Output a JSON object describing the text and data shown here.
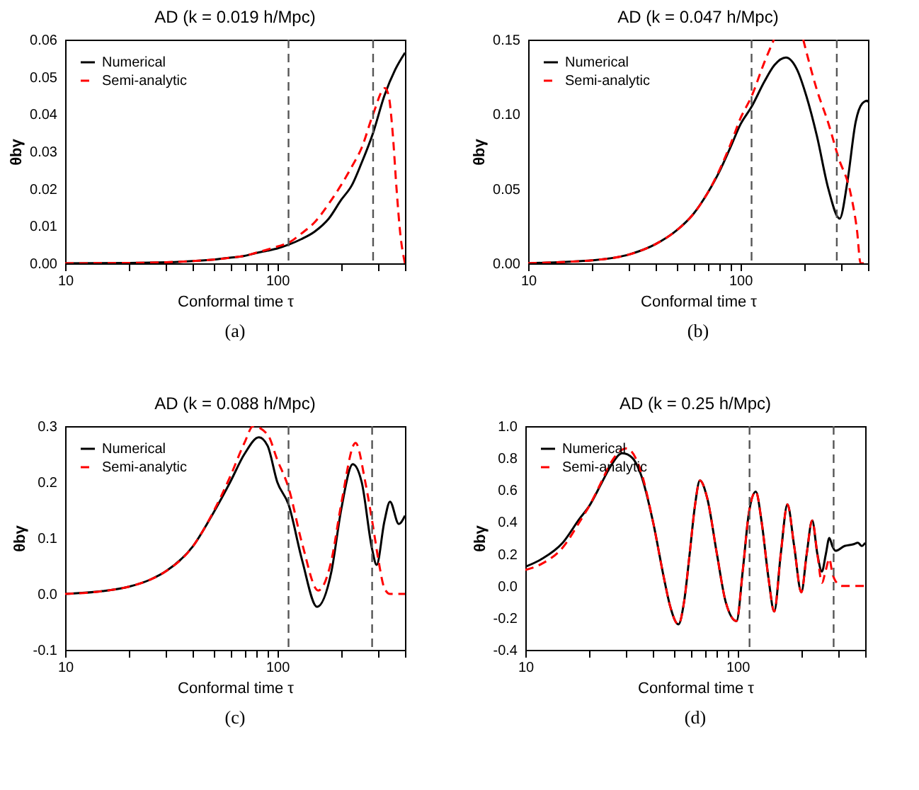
{
  "chart_data": [
    {
      "type": "line",
      "title": "AD (k = 0.019 h/Mpc)",
      "xlabel": "Conformal time τ",
      "ylabel": "θbγ",
      "log": "x",
      "grid": false,
      "legend": "top left",
      "annotations": [
        "(a)"
      ],
      "xlim": [
        10,
        400
      ],
      "xticks": [
        10,
        {
          "value": 20,
          "label": null
        },
        {
          "value": 30,
          "label": null
        },
        {
          "value": 40,
          "label": null
        },
        {
          "value": 50,
          "label": null
        },
        {
          "value": 60,
          "label": null
        },
        {
          "value": 70,
          "label": null
        },
        {
          "value": 80,
          "label": null
        },
        {
          "value": 90,
          "label": null
        },
        100,
        {
          "value": 200,
          "label": null
        },
        {
          "value": 300,
          "label": null
        },
        {
          "value": 400,
          "label": null
        }
      ],
      "ylim": [
        0,
        0.06
      ],
      "yticks": [
        {
          "value": 0,
          "label": "0.00"
        },
        0.01,
        0.02,
        0.03,
        0.04,
        0.05,
        0.06
      ],
      "ref_lines": [
        {
          "axis": "x",
          "value": 113,
          "color": "#555555",
          "line_style": "dashed"
        },
        {
          "axis": "x",
          "value": 283,
          "color": "#555555",
          "line_style": "dashed"
        }
      ],
      "series": [
        {
          "name": "Numerical",
          "color": "#000000",
          "line_style": "solid",
          "x": [
            10,
            20,
            30,
            40,
            50,
            60,
            70,
            80,
            90,
            100,
            113,
            130,
            150,
            175,
            200,
            225,
            250,
            283,
            320,
            360,
            400
          ],
          "values": [
            0,
            0.0001,
            0.0003,
            0.0006,
            0.001,
            0.0015,
            0.002,
            0.0028,
            0.0034,
            0.004,
            0.005,
            0.0065,
            0.0085,
            0.012,
            0.017,
            0.021,
            0.027,
            0.035,
            0.045,
            0.052,
            0.0565
          ]
        },
        {
          "name": "Semi-analytic",
          "color": "#ff0000",
          "line_style": "dashed",
          "x": [
            10,
            20,
            30,
            40,
            50,
            60,
            70,
            80,
            90,
            100,
            113,
            130,
            150,
            175,
            200,
            225,
            250,
            283,
            322,
            335,
            350,
            365,
            380,
            400
          ],
          "values": [
            0,
            0.0001,
            0.0003,
            0.0006,
            0.001,
            0.0015,
            0.002,
            0.0029,
            0.0037,
            0.0045,
            0.0055,
            0.008,
            0.011,
            0.016,
            0.021,
            0.026,
            0.031,
            0.04,
            0.047,
            0.045,
            0.035,
            0.02,
            0.008,
            0
          ]
        }
      ]
    },
    {
      "type": "line",
      "title": "AD (k = 0.047 h/Mpc)",
      "xlabel": "Conformal time τ",
      "ylabel": "θbγ",
      "log": "x",
      "grid": false,
      "legend": "top left",
      "annotations": [
        "(b)"
      ],
      "xlim": [
        10,
        400
      ],
      "xticks": [
        10,
        {
          "value": 20,
          "label": null
        },
        {
          "value": 30,
          "label": null
        },
        {
          "value": 40,
          "label": null
        },
        {
          "value": 50,
          "label": null
        },
        {
          "value": 60,
          "label": null
        },
        {
          "value": 70,
          "label": null
        },
        {
          "value": 80,
          "label": null
        },
        {
          "value": 90,
          "label": null
        },
        100,
        {
          "value": 200,
          "label": null
        },
        {
          "value": 300,
          "label": null
        },
        {
          "value": 400,
          "label": null
        }
      ],
      "ylim": [
        0,
        0.15
      ],
      "yticks": [
        {
          "value": 0,
          "label": "0.00"
        },
        0.05,
        {
          "value": 0.1,
          "label": "0.10"
        },
        0.15
      ],
      "ref_lines": [
        {
          "axis": "x",
          "value": 113,
          "color": "#555555",
          "line_style": "dashed"
        },
        {
          "axis": "x",
          "value": 285,
          "color": "#555555",
          "line_style": "dashed"
        }
      ],
      "series": [
        {
          "name": "Numerical",
          "color": "#000000",
          "line_style": "solid",
          "x": [
            10,
            15,
            20,
            30,
            40,
            50,
            60,
            70,
            80,
            90,
            100,
            113,
            130,
            145,
            164,
            185,
            205,
            230,
            260,
            294,
            320,
            350,
            375,
            397,
            400
          ],
          "values": [
            0,
            0.001,
            0.002,
            0.006,
            0.013,
            0.022,
            0.033,
            0.047,
            0.062,
            0.078,
            0.093,
            0.105,
            0.122,
            0.133,
            0.138,
            0.13,
            0.112,
            0.085,
            0.05,
            0.03,
            0.055,
            0.095,
            0.107,
            0.109,
            0.108
          ]
        },
        {
          "name": "Semi-analytic",
          "color": "#ff0000",
          "line_style": "dashed",
          "x": [
            10,
            15,
            20,
            30,
            40,
            50,
            60,
            70,
            80,
            90,
            100,
            113,
            130,
            144,
            170,
            198,
            230,
            260,
            290,
            331,
            355,
            369,
            400
          ],
          "values": [
            0,
            0.001,
            0.002,
            0.006,
            0.013,
            0.022,
            0.033,
            0.047,
            0.063,
            0.08,
            0.097,
            0.112,
            0.135,
            0.15,
            null,
            0.15,
            0.116,
            0.094,
            0.071,
            0.047,
            0.022,
            0,
            0
          ]
        }
      ]
    },
    {
      "type": "line",
      "title": "AD (k = 0.088 h/Mpc)",
      "xlabel": "Conformal time τ",
      "ylabel": "θbγ",
      "log": "x",
      "grid": false,
      "legend": "top left",
      "annotations": [
        "(c)"
      ],
      "xlim": [
        10,
        400
      ],
      "xticks": [
        10,
        {
          "value": 20,
          "label": null
        },
        {
          "value": 30,
          "label": null
        },
        {
          "value": 40,
          "label": null
        },
        {
          "value": 50,
          "label": null
        },
        {
          "value": 60,
          "label": null
        },
        {
          "value": 70,
          "label": null
        },
        {
          "value": 80,
          "label": null
        },
        {
          "value": 90,
          "label": null
        },
        100,
        {
          "value": 200,
          "label": null
        },
        {
          "value": 300,
          "label": null
        },
        {
          "value": 400,
          "label": null
        }
      ],
      "ylim": [
        -0.1,
        0.3
      ],
      "yticks": [
        -0.1,
        {
          "value": 0,
          "label": "0.0"
        },
        0.1,
        0.2,
        0.3
      ],
      "ref_lines": [
        {
          "axis": "x",
          "value": 113,
          "color": "#555555",
          "line_style": "dashed"
        },
        {
          "axis": "x",
          "value": 280,
          "color": "#555555",
          "line_style": "dashed"
        }
      ],
      "series": [
        {
          "name": "Numerical",
          "color": "#000000",
          "line_style": "solid",
          "x": [
            10,
            15,
            20,
            25,
            30,
            40,
            50,
            60,
            70,
            82,
            90,
            100,
            113,
            131,
            154,
            180,
            200,
            227,
            250,
            280,
            294,
            320,
            340,
            374,
            400
          ],
          "values": [
            0,
            0.005,
            0.013,
            0.025,
            0.041,
            0.085,
            0.145,
            0.2,
            0.25,
            0.28,
            0.265,
            0.2,
            0.16,
            0.06,
            -0.023,
            0.04,
            0.15,
            0.232,
            0.2,
            0.08,
            0.052,
            0.13,
            0.165,
            0.125,
            0.14
          ]
        },
        {
          "name": "Semi-analytic",
          "color": "#ff0000",
          "line_style": "dashed",
          "x": [
            10,
            15,
            20,
            25,
            30,
            40,
            50,
            60,
            70,
            77,
            90,
            100,
            113,
            131,
            156,
            180,
            200,
            234,
            260,
            283,
            300,
            320,
            340,
            400
          ],
          "values": [
            0,
            0.005,
            0.013,
            0.025,
            0.041,
            0.085,
            0.147,
            0.21,
            0.27,
            0.3,
            0.285,
            0.24,
            0.19,
            0.09,
            0.006,
            0.06,
            0.16,
            0.27,
            0.2,
            0.12,
            0.06,
            0.01,
            0,
            0
          ]
        }
      ]
    },
    {
      "type": "line",
      "title": "AD (k = 0.25 h/Mpc)",
      "xlabel": "Conformal time τ",
      "ylabel": "θbγ",
      "log": "x",
      "grid": false,
      "legend": "top left",
      "annotations": [
        "(d)"
      ],
      "xlim": [
        10,
        400
      ],
      "xticks": [
        10,
        {
          "value": 20,
          "label": null
        },
        {
          "value": 30,
          "label": null
        },
        {
          "value": 40,
          "label": null
        },
        {
          "value": 50,
          "label": null
        },
        {
          "value": 60,
          "label": null
        },
        {
          "value": 70,
          "label": null
        },
        {
          "value": 80,
          "label": null
        },
        {
          "value": 90,
          "label": null
        },
        100,
        {
          "value": 200,
          "label": null
        },
        {
          "value": 300,
          "label": null
        },
        {
          "value": 400,
          "label": null
        }
      ],
      "ylim": [
        -0.4,
        1.0
      ],
      "yticks": [
        -0.4,
        -0.2,
        {
          "value": 0,
          "label": "0.0"
        },
        0.2,
        0.4,
        0.6,
        0.8,
        {
          "value": 1,
          "label": "1.0"
        }
      ],
      "ref_lines": [
        {
          "axis": "x",
          "value": 114,
          "color": "#555555",
          "line_style": "dashed"
        },
        {
          "axis": "x",
          "value": 284,
          "color": "#555555",
          "line_style": "dashed"
        }
      ],
      "series": [
        {
          "name": "Numerical",
          "color": "#000000",
          "line_style": "solid",
          "x": [
            10,
            12,
            15,
            18,
            20,
            23,
            25,
            28.7,
            32,
            35,
            40,
            45,
            48,
            52.7,
            56,
            59.5,
            63,
            66.5,
            72,
            80,
            88,
            99,
            106,
            113,
            122,
            130,
            140,
            149,
            160,
            172,
            185,
            200,
            212,
            225,
            238,
            250,
            261,
            271,
            280,
            290,
            320,
            350,
            370,
            385,
            400
          ],
          "values": [
            0.12,
            0.17,
            0.27,
            0.42,
            0.5,
            0.65,
            0.74,
            0.83,
            0.8,
            0.7,
            0.4,
            0.05,
            -0.12,
            -0.24,
            -0.1,
            0.2,
            0.5,
            0.66,
            0.55,
            0.2,
            -0.1,
            -0.22,
            0.1,
            0.45,
            0.59,
            0.4,
            0.05,
            -0.16,
            0.2,
            0.51,
            0.25,
            -0.04,
            0.2,
            0.41,
            0.2,
            0.09,
            0.2,
            0.3,
            0.25,
            0.22,
            0.25,
            0.26,
            0.27,
            0.25,
            0.27
          ]
        },
        {
          "name": "Semi-analytic",
          "color": "#ff0000",
          "line_style": "dashed",
          "x": [
            10,
            12,
            15,
            18,
            20,
            23,
            25,
            30,
            35,
            40,
            45,
            48,
            52.7,
            56,
            59.5,
            63,
            66.5,
            72,
            80,
            88,
            99,
            106,
            113,
            122,
            130,
            140,
            149,
            160,
            172,
            185,
            200,
            212,
            225,
            238,
            250,
            261,
            271,
            280,
            290,
            310,
            400
          ],
          "values": [
            0.1,
            0.14,
            0.24,
            0.4,
            0.5,
            0.66,
            0.76,
            0.86,
            0.72,
            0.4,
            0.05,
            -0.12,
            -0.24,
            -0.1,
            0.2,
            0.5,
            0.66,
            0.55,
            0.2,
            -0.1,
            -0.22,
            0.1,
            0.45,
            0.59,
            0.4,
            0.05,
            -0.16,
            0.2,
            0.51,
            0.25,
            -0.04,
            0.2,
            0.41,
            0.2,
            0.02,
            0.1,
            0.17,
            0.08,
            0.03,
            0,
            0
          ]
        }
      ]
    }
  ]
}
